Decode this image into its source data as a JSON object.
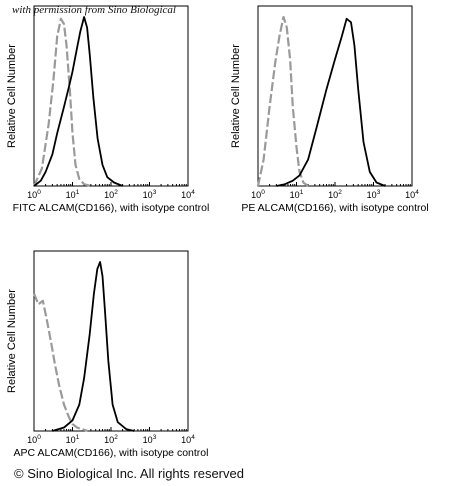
{
  "watermark": "with permission from Sino Biological",
  "copyright": "© Sino Biological Inc. All rights reserved",
  "chart_data": [
    {
      "type": "line",
      "xscale": "log",
      "xlim": [
        1,
        10000
      ],
      "x_ticks": [
        "10^0",
        "10^1",
        "10^2",
        "10^3",
        "10^4"
      ],
      "xlabel": "FITC ALCAM(CD166), with isotype control",
      "ylabel": "Relative Cell Number",
      "series": [
        {
          "color": "#9a9a9a",
          "dash": true,
          "x": [
            1.0,
            1.6,
            2.4,
            3.2,
            4.0,
            5.0,
            6.0,
            7.0,
            8.5,
            10.0,
            12.0,
            15.0,
            20.0,
            30.0
          ],
          "y": [
            0.0,
            0.1,
            0.35,
            0.6,
            0.85,
            0.95,
            0.92,
            0.8,
            0.55,
            0.3,
            0.12,
            0.04,
            0.01,
            0.0
          ]
        },
        {
          "color": "#000000",
          "x": [
            1.0,
            1.5,
            2.0,
            3.0,
            4.0,
            6.0,
            8.0,
            10.0,
            13.0,
            16.0,
            20.0,
            24.0,
            28.0,
            35.0,
            45.0,
            60.0,
            80.0,
            120.0,
            200.0
          ],
          "y": [
            0.0,
            0.03,
            0.08,
            0.18,
            0.3,
            0.45,
            0.56,
            0.65,
            0.78,
            0.88,
            0.96,
            0.9,
            0.75,
            0.5,
            0.27,
            0.12,
            0.05,
            0.02,
            0.0
          ]
        }
      ]
    },
    {
      "type": "line",
      "xscale": "log",
      "xlim": [
        1,
        10000
      ],
      "x_ticks": [
        "10^0",
        "10^1",
        "10^2",
        "10^3",
        "10^4"
      ],
      "xlabel": "PE ALCAM(CD166), with isotype control",
      "ylabel": "Relative Cell Number",
      "series": [
        {
          "color": "#9a9a9a",
          "dash": true,
          "x": [
            1.0,
            1.4,
            2.0,
            2.8,
            3.6,
            4.6,
            5.6,
            6.8,
            8.0,
            10.0,
            12.0,
            15.0,
            20.0
          ],
          "y": [
            0.0,
            0.15,
            0.45,
            0.7,
            0.85,
            0.96,
            0.9,
            0.72,
            0.45,
            0.22,
            0.08,
            0.02,
            0.0
          ]
        },
        {
          "color": "#000000",
          "x": [
            3.0,
            5.0,
            8.0,
            12.0,
            20.0,
            35.0,
            60.0,
            100.0,
            150.0,
            200.0,
            260.0,
            320.0,
            400.0,
            550.0,
            800.0,
            1200.0,
            2000.0
          ],
          "y": [
            0.0,
            0.01,
            0.03,
            0.06,
            0.15,
            0.35,
            0.55,
            0.72,
            0.85,
            0.95,
            0.93,
            0.8,
            0.55,
            0.25,
            0.08,
            0.02,
            0.0
          ]
        }
      ]
    },
    {
      "type": "line",
      "xscale": "log",
      "xlim": [
        1,
        10000
      ],
      "x_ticks": [
        "10^0",
        "10^1",
        "10^2",
        "10^3",
        "10^4"
      ],
      "xlabel": "APC ALCAM(CD166), with isotype control",
      "ylabel": "Relative Cell Number",
      "series": [
        {
          "color": "#9a9a9a",
          "dash": true,
          "x": [
            1.0,
            1.3,
            1.7,
            2.2,
            2.8,
            3.5,
            4.5,
            6.0,
            8.0,
            10.0,
            13.0,
            18.0,
            25.0
          ],
          "y": [
            0.78,
            0.72,
            0.74,
            0.62,
            0.5,
            0.38,
            0.26,
            0.15,
            0.08,
            0.04,
            0.02,
            0.01,
            0.0
          ]
        },
        {
          "color": "#000000",
          "x": [
            3.0,
            6.0,
            10.0,
            15.0,
            20.0,
            28.0,
            36.0,
            44.0,
            52.0,
            60.0,
            70.0,
            85.0,
            110.0,
            150.0,
            250.0,
            400.0
          ],
          "y": [
            0.0,
            0.02,
            0.06,
            0.15,
            0.3,
            0.55,
            0.78,
            0.92,
            0.96,
            0.88,
            0.68,
            0.4,
            0.15,
            0.05,
            0.01,
            0.0
          ]
        }
      ]
    }
  ]
}
